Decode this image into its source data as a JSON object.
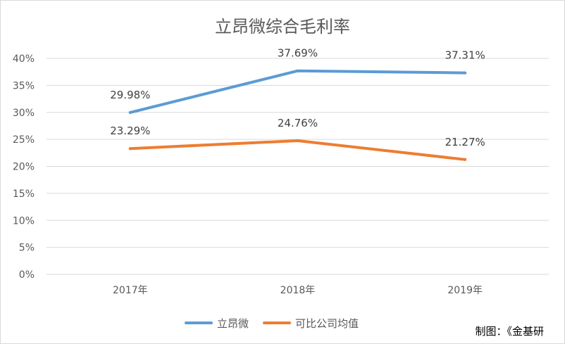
{
  "chart_data": {
    "type": "line",
    "title": "立昂微综合毛利率",
    "categories": [
      "2017年",
      "2018年",
      "2019年"
    ],
    "series": [
      {
        "name": "立昂微",
        "values": [
          29.98,
          37.69,
          37.31
        ],
        "labels": [
          "29.98%",
          "37.69%",
          "37.31%"
        ],
        "color": "#5b9bd5"
      },
      {
        "name": "可比公司均值",
        "values": [
          23.29,
          24.76,
          21.27
        ],
        "labels": [
          "23.29%",
          "24.76%",
          "21.27%"
        ],
        "color": "#ed7d31"
      }
    ],
    "ylim": [
      0,
      40
    ],
    "yticks": [
      "0%",
      "5%",
      "10%",
      "15%",
      "20%",
      "25%",
      "30%",
      "35%",
      "40%"
    ],
    "grid": true,
    "gridColor": "#d9d9d9",
    "legend_position": "bottom",
    "xlabel": "",
    "ylabel": ""
  },
  "credit": "制图：《金基研"
}
